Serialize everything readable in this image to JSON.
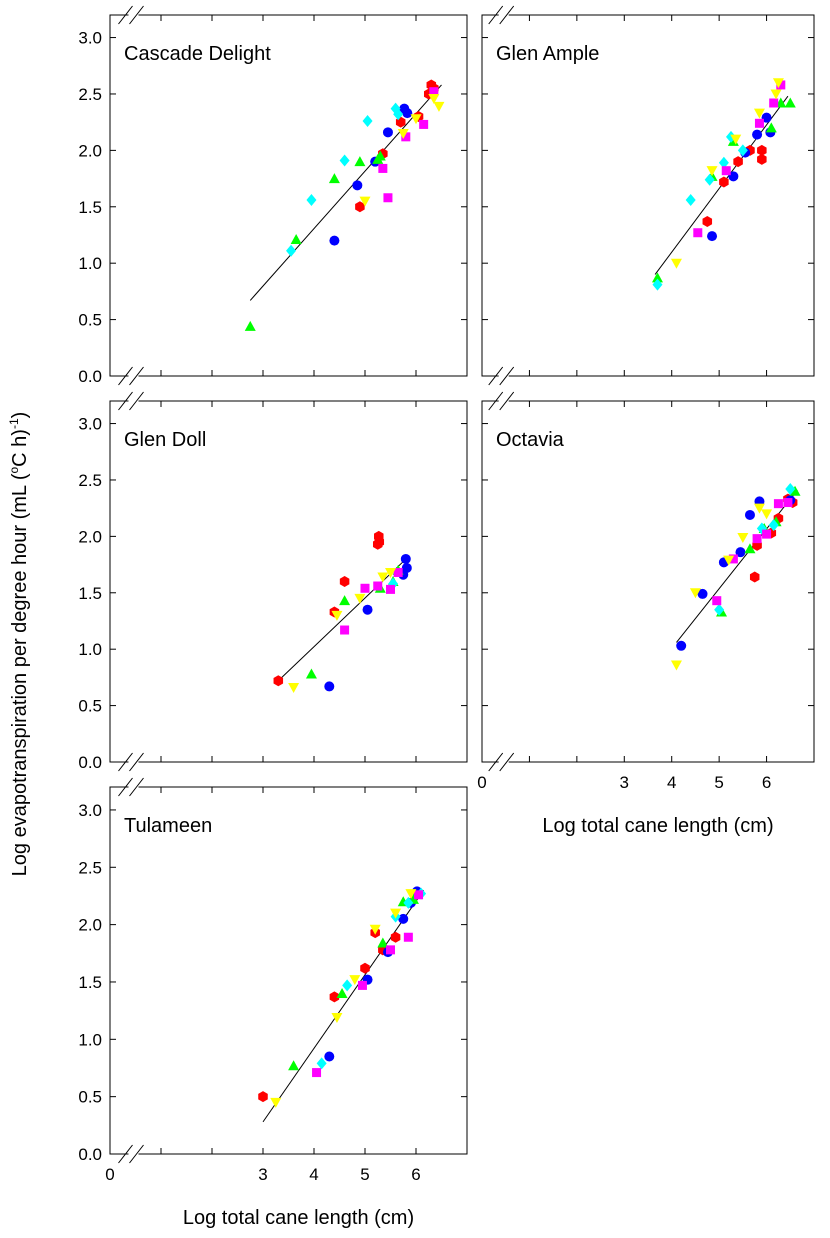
{
  "figure": {
    "ylabel": "Log evapotranspiration per degree hour (mL (",
    "ylabel_sup1": "o",
    "ylabel_mid": "C h)",
    "ylabel_sup2": "-1",
    "ylabel_end": ")",
    "xlabel": "Log total cane length (cm)"
  },
  "colors": {
    "red": "#ff0000",
    "blue": "#0000ff",
    "green": "#00ff00",
    "cyan": "#00ffff",
    "magenta": "#ff00ff",
    "yellow": "#ffff00"
  },
  "chart_data": [
    {
      "type": "scatter",
      "title": "Cascade Delight",
      "xlim": [
        0,
        7
      ],
      "ylim": [
        0,
        3.2
      ],
      "y_ticks": [
        "0.0",
        "0.5",
        "1.0",
        "1.5",
        "2.0",
        "2.5",
        "3.0"
      ],
      "axis_breaks": true,
      "series": [
        {
          "color": "red",
          "marker": "hexagon",
          "points": [
            [
              4.9,
              1.5
            ],
            [
              5.35,
              1.97
            ],
            [
              5.7,
              2.25
            ],
            [
              6.05,
              2.3
            ],
            [
              6.25,
              2.5
            ],
            [
              6.3,
              2.58
            ],
            [
              6.35,
              2.55
            ]
          ]
        },
        {
          "color": "blue",
          "marker": "circle",
          "points": [
            [
              4.4,
              1.2
            ],
            [
              4.85,
              1.69
            ],
            [
              5.2,
              1.9
            ],
            [
              5.45,
              2.16
            ],
            [
              5.77,
              2.37
            ],
            [
              5.83,
              2.33
            ]
          ]
        },
        {
          "color": "green",
          "marker": "triangle-up",
          "points": [
            [
              2.75,
              0.44
            ],
            [
              3.65,
              1.21
            ],
            [
              4.4,
              1.75
            ],
            [
              4.9,
              1.9
            ],
            [
              5.25,
              1.92
            ],
            [
              5.3,
              1.95
            ]
          ]
        },
        {
          "color": "cyan",
          "marker": "diamond",
          "points": [
            [
              3.55,
              1.11
            ],
            [
              3.95,
              1.56
            ],
            [
              4.6,
              1.91
            ],
            [
              5.05,
              2.26
            ],
            [
              5.6,
              2.37
            ],
            [
              5.65,
              2.32
            ]
          ]
        },
        {
          "color": "magenta",
          "marker": "square",
          "points": [
            [
              5.35,
              1.84
            ],
            [
              5.45,
              1.58
            ],
            [
              5.8,
              2.12
            ],
            [
              6.15,
              2.23
            ],
            [
              6.35,
              2.52
            ]
          ]
        },
        {
          "color": "yellow",
          "marker": "triangle-down",
          "points": [
            [
              5.0,
              1.55
            ],
            [
              5.75,
              2.15
            ],
            [
              6.0,
              2.28
            ],
            [
              6.45,
              2.39
            ],
            [
              6.35,
              2.46
            ]
          ]
        }
      ],
      "regression": {
        "x": [
          2.75,
          6.5
        ],
        "y": [
          0.67,
          2.58
        ]
      }
    },
    {
      "type": "scatter",
      "title": "Glen Ample",
      "xlim": [
        0,
        7
      ],
      "ylim": [
        0,
        3.2
      ],
      "axis_breaks": true,
      "series": [
        {
          "color": "red",
          "marker": "hexagon",
          "points": [
            [
              4.75,
              1.37
            ],
            [
              5.1,
              1.72
            ],
            [
              5.4,
              1.9
            ],
            [
              5.65,
              2.0
            ],
            [
              5.9,
              1.92
            ],
            [
              5.9,
              2.0
            ]
          ]
        },
        {
          "color": "blue",
          "marker": "circle",
          "points": [
            [
              4.85,
              1.24
            ],
            [
              5.3,
              1.77
            ],
            [
              5.55,
              1.98
            ],
            [
              5.8,
              2.14
            ],
            [
              6.0,
              2.29
            ],
            [
              6.08,
              2.16
            ]
          ]
        },
        {
          "color": "green",
          "marker": "triangle-up",
          "points": [
            [
              3.7,
              0.87
            ],
            [
              4.85,
              1.77
            ],
            [
              5.3,
              2.08
            ],
            [
              6.1,
              2.2
            ],
            [
              6.5,
              2.42
            ],
            [
              6.3,
              2.42
            ]
          ]
        },
        {
          "color": "cyan",
          "marker": "diamond",
          "points": [
            [
              3.7,
              0.81
            ],
            [
              4.4,
              1.56
            ],
            [
              4.8,
              1.74
            ],
            [
              5.1,
              1.89
            ],
            [
              5.25,
              2.12
            ],
            [
              5.5,
              2.0
            ]
          ]
        },
        {
          "color": "magenta",
          "marker": "square",
          "points": [
            [
              4.55,
              1.27
            ],
            [
              5.15,
              1.82
            ],
            [
              5.85,
              2.24
            ],
            [
              6.15,
              2.42
            ],
            [
              6.3,
              2.58
            ]
          ]
        },
        {
          "color": "yellow",
          "marker": "triangle-down",
          "points": [
            [
              4.1,
              1.0
            ],
            [
              4.85,
              1.82
            ],
            [
              5.35,
              2.1
            ],
            [
              5.85,
              2.33
            ],
            [
              6.2,
              2.5
            ],
            [
              6.25,
              2.6
            ]
          ]
        }
      ],
      "regression": {
        "x": [
          3.65,
          6.45
        ],
        "y": [
          0.9,
          2.48
        ]
      }
    },
    {
      "type": "scatter",
      "title": "Glen Doll",
      "xlim": [
        0,
        7
      ],
      "ylim": [
        0,
        3.2
      ],
      "y_ticks": [
        "0.0",
        "0.5",
        "1.0",
        "1.5",
        "2.0",
        "2.5",
        "3.0"
      ],
      "axis_breaks": true,
      "series": [
        {
          "color": "red",
          "marker": "hexagon",
          "points": [
            [
              3.3,
              0.72
            ],
            [
              4.4,
              1.33
            ],
            [
              4.6,
              1.6
            ],
            [
              5.25,
              1.93
            ],
            [
              5.27,
              2.0
            ],
            [
              5.28,
              1.95
            ]
          ]
        },
        {
          "color": "blue",
          "marker": "circle",
          "points": [
            [
              4.3,
              0.67
            ],
            [
              5.05,
              1.35
            ],
            [
              5.75,
              1.66
            ],
            [
              5.8,
              1.8
            ],
            [
              5.82,
              1.72
            ]
          ]
        },
        {
          "color": "green",
          "marker": "triangle-up",
          "points": [
            [
              3.95,
              0.78
            ],
            [
              4.6,
              1.43
            ],
            [
              5.3,
              1.54
            ],
            [
              5.55,
              1.6
            ],
            [
              5.65,
              1.7
            ]
          ]
        },
        {
          "color": "cyan",
          "marker": "diamond",
          "points": [
            [
              5.55,
              1.58
            ]
          ]
        },
        {
          "color": "magenta",
          "marker": "square",
          "points": [
            [
              4.6,
              1.17
            ],
            [
              5.0,
              1.54
            ],
            [
              5.25,
              1.56
            ],
            [
              5.5,
              1.53
            ],
            [
              5.65,
              1.68
            ]
          ]
        },
        {
          "color": "yellow",
          "marker": "triangle-down",
          "points": [
            [
              3.6,
              0.66
            ],
            [
              4.45,
              1.3
            ],
            [
              4.9,
              1.45
            ],
            [
              5.35,
              1.64
            ],
            [
              5.5,
              1.68
            ]
          ]
        }
      ],
      "regression": {
        "x": [
          3.3,
          5.85
        ],
        "y": [
          0.72,
          1.82
        ]
      }
    },
    {
      "type": "scatter",
      "title": "Octavia",
      "xlabel": "Log total cane length (cm)",
      "xlim": [
        0,
        7
      ],
      "ylim": [
        0,
        3.2
      ],
      "x_ticks": [
        "0",
        "3",
        "4",
        "5",
        "6"
      ],
      "axis_breaks": true,
      "series": [
        {
          "color": "red",
          "marker": "hexagon",
          "points": [
            [
              5.75,
              1.64
            ],
            [
              5.8,
              1.92
            ],
            [
              6.1,
              2.03
            ],
            [
              6.25,
              2.16
            ],
            [
              6.55,
              2.3
            ],
            [
              6.45,
              2.33
            ]
          ]
        },
        {
          "color": "blue",
          "marker": "circle",
          "points": [
            [
              4.2,
              1.03
            ],
            [
              4.65,
              1.49
            ],
            [
              5.1,
              1.77
            ],
            [
              5.45,
              1.86
            ],
            [
              5.65,
              2.19
            ],
            [
              5.85,
              2.31
            ],
            [
              6.5,
              2.32
            ]
          ]
        },
        {
          "color": "green",
          "marker": "triangle-up",
          "points": [
            [
              5.05,
              1.33
            ],
            [
              5.65,
              1.89
            ],
            [
              5.95,
              2.07
            ],
            [
              6.2,
              2.13
            ],
            [
              6.6,
              2.4
            ]
          ]
        },
        {
          "color": "cyan",
          "marker": "diamond",
          "points": [
            [
              5.0,
              1.35
            ],
            [
              5.9,
              2.07
            ],
            [
              6.15,
              2.1
            ],
            [
              6.5,
              2.42
            ]
          ]
        },
        {
          "color": "magenta",
          "marker": "square",
          "points": [
            [
              4.95,
              1.43
            ],
            [
              5.3,
              1.8
            ],
            [
              5.8,
              1.98
            ],
            [
              6.0,
              2.02
            ],
            [
              6.25,
              2.29
            ],
            [
              6.45,
              2.3
            ]
          ]
        },
        {
          "color": "yellow",
          "marker": "triangle-down",
          "points": [
            [
              4.1,
              0.86
            ],
            [
              4.5,
              1.5
            ],
            [
              5.2,
              1.79
            ],
            [
              5.5,
              1.99
            ],
            [
              5.85,
              2.25
            ],
            [
              6.0,
              2.2
            ]
          ]
        }
      ],
      "regression": {
        "x": [
          4.1,
          6.65
        ],
        "y": [
          1.06,
          2.41
        ]
      }
    },
    {
      "type": "scatter",
      "title": "Tulameen",
      "xlabel": "Log total cane length (cm)",
      "xlim": [
        0,
        7
      ],
      "ylim": [
        0,
        3.2
      ],
      "y_ticks": [
        "0.0",
        "0.5",
        "1.0",
        "1.5",
        "2.0",
        "2.5",
        "3.0"
      ],
      "x_ticks": [
        "0",
        "3",
        "4",
        "5",
        "6"
      ],
      "axis_breaks": true,
      "series": [
        {
          "color": "red",
          "marker": "hexagon",
          "points": [
            [
              3.0,
              0.5
            ],
            [
              4.4,
              1.37
            ],
            [
              5.0,
              1.62
            ],
            [
              5.2,
              1.93
            ],
            [
              5.35,
              1.78
            ],
            [
              5.6,
              1.89
            ]
          ]
        },
        {
          "color": "blue",
          "marker": "circle",
          "points": [
            [
              4.3,
              0.85
            ],
            [
              5.05,
              1.52
            ],
            [
              5.45,
              1.76
            ],
            [
              5.75,
              2.05
            ],
            [
              5.9,
              2.19
            ],
            [
              6.02,
              2.29
            ]
          ]
        },
        {
          "color": "green",
          "marker": "triangle-up",
          "points": [
            [
              3.6,
              0.77
            ],
            [
              4.55,
              1.4
            ],
            [
              5.35,
              1.84
            ],
            [
              5.75,
              2.2
            ],
            [
              5.95,
              2.22
            ]
          ]
        },
        {
          "color": "cyan",
          "marker": "diamond",
          "points": [
            [
              4.15,
              0.79
            ],
            [
              4.65,
              1.47
            ],
            [
              5.6,
              2.07
            ],
            [
              5.85,
              2.19
            ],
            [
              6.1,
              2.27
            ]
          ]
        },
        {
          "color": "magenta",
          "marker": "square",
          "points": [
            [
              4.05,
              0.71
            ],
            [
              4.95,
              1.47
            ],
            [
              5.5,
              1.78
            ],
            [
              5.85,
              1.89
            ],
            [
              6.05,
              2.26
            ]
          ]
        },
        {
          "color": "yellow",
          "marker": "triangle-down",
          "points": [
            [
              3.25,
              0.45
            ],
            [
              4.45,
              1.19
            ],
            [
              4.8,
              1.52
            ],
            [
              5.2,
              1.96
            ],
            [
              5.6,
              2.1
            ],
            [
              5.9,
              2.27
            ]
          ]
        }
      ],
      "regression": {
        "x": [
          3.0,
          6.15
        ],
        "y": [
          0.28,
          2.3
        ]
      }
    }
  ]
}
